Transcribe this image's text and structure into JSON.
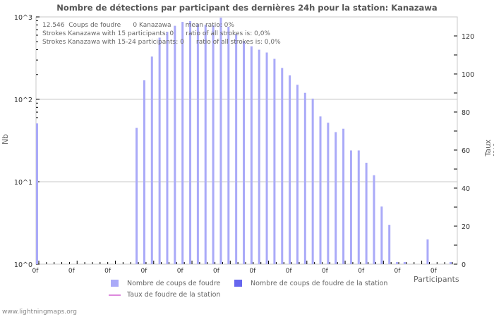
{
  "chart_data": {
    "type": "bar",
    "title": "Nombre de détections par participant des dernières 24h pour la station: Kanazawa",
    "xlabel": "Participants",
    "ylabel": "Nb",
    "y2label": "Taux [%]",
    "yscale": "log",
    "ylim": [
      1,
      1000
    ],
    "y_ticks": [
      "10^0",
      "10^1",
      "10^2",
      "10^3"
    ],
    "y2_ticks": [
      "0",
      "20",
      "40",
      "60",
      "80",
      "100",
      "120"
    ],
    "y2lim": [
      0,
      130
    ],
    "x_tick_labels": [
      "0f",
      "0f",
      "0f",
      "0f",
      "0f",
      "0f",
      "0f",
      "0f",
      "0f",
      "0f",
      "0f",
      "0f"
    ],
    "grid": true,
    "series": [
      {
        "name": "Nombre de coups de foudre",
        "color": "#aaaaf8",
        "values": [
          51,
          0,
          0,
          0,
          0,
          0,
          0,
          0,
          0,
          0,
          0,
          0,
          0,
          45,
          170,
          330,
          560,
          660,
          780,
          870,
          890,
          820,
          800,
          790,
          980,
          760,
          620,
          510,
          440,
          400,
          370,
          310,
          240,
          195,
          150,
          120,
          102,
          62,
          52,
          40,
          44,
          24,
          24,
          17,
          12,
          5,
          3,
          1,
          1,
          0,
          0,
          2,
          0,
          0,
          1
        ]
      },
      {
        "name": "Nombre de coups de foudre de la station",
        "color": "#6666ee",
        "values": []
      },
      {
        "name": "Taux de foudre de la station",
        "color": "#dd88dd",
        "type": "line",
        "values": []
      }
    ]
  },
  "header": {
    "title": "Nombre de détections par participant des dernières 24h pour la station: Kanazawa"
  },
  "info": {
    "line1": "12.546  Coups de foudre      0 Kanazawa       mean ratio: 0%",
    "line2": "Strokes Kanazawa with 15 participants: 0      ratio of all strokes is: 0,0%",
    "line3": "Strokes Kanazawa with 15-24 participants: 0      ratio of all strokes is: 0,0%"
  },
  "axes": {
    "y_label": "Nb",
    "y2_label": "Taux [%]",
    "x_label": "Participants",
    "y_ticks": [
      "10^0",
      "10^1",
      "10^2",
      "10^3"
    ],
    "y2_ticks": [
      "0",
      "20",
      "40",
      "60",
      "80",
      "100",
      "120"
    ],
    "x_ticks": [
      "0f",
      "0f",
      "0f",
      "0f",
      "0f",
      "0f",
      "0f",
      "0f",
      "0f",
      "0f",
      "0f",
      "0f"
    ]
  },
  "legend": {
    "item1": "Nombre de coups de foudre",
    "item2": "Nombre de coups de foudre de la station",
    "item3": "Taux de foudre de la station"
  },
  "footer": {
    "site": "www.lightningmaps.org"
  },
  "colors": {
    "bar": "#aaaaf8",
    "bar_station": "#6666ee",
    "line": "#dd88dd",
    "grid": "#c8c8c8"
  }
}
